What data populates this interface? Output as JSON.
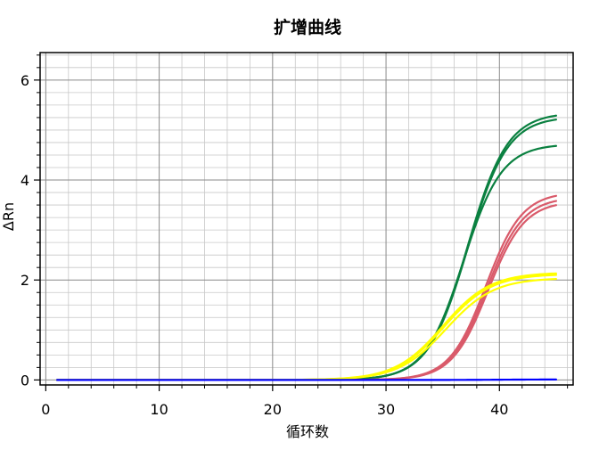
{
  "chart_data": {
    "type": "line",
    "title": "扩增曲线",
    "xlabel": "循环数",
    "ylabel": "ΔRn",
    "xlim": [
      -0.5,
      46.5
    ],
    "ylim": [
      -0.1,
      6.55
    ],
    "xticks": [
      0,
      10,
      20,
      30,
      40
    ],
    "yticks": [
      0,
      2,
      4,
      6
    ],
    "grid": true,
    "legend": "none",
    "x_start": 1,
    "x_end": 45,
    "series": [
      {
        "color": "#0a8040",
        "plateau": 5.35,
        "midpoint": 37.2,
        "slope": 1.75
      },
      {
        "color": "#0a8040",
        "plateau": 5.27,
        "midpoint": 37.2,
        "slope": 1.75
      },
      {
        "color": "#0a8040",
        "plateau": 4.72,
        "midpoint": 36.8,
        "slope": 1.7
      },
      {
        "color": "#d95a6a",
        "plateau": 3.76,
        "midpoint": 38.8,
        "slope": 1.6
      },
      {
        "color": "#d95a6a",
        "plateau": 3.66,
        "midpoint": 38.9,
        "slope": 1.6
      },
      {
        "color": "#d95a6a",
        "plateau": 3.58,
        "midpoint": 39.0,
        "slope": 1.6
      },
      {
        "color": "#ffff00",
        "plateau": 2.15,
        "midpoint": 35.0,
        "slope": 2.1
      },
      {
        "color": "#ffff00",
        "plateau": 2.12,
        "midpoint": 35.1,
        "slope": 2.1
      },
      {
        "color": "#ffff00",
        "plateau": 2.04,
        "midpoint": 35.3,
        "slope": 2.1
      },
      {
        "color": "#0000ff",
        "plateau": 0.01,
        "midpoint": 40.0,
        "slope": 2.0
      }
    ]
  }
}
